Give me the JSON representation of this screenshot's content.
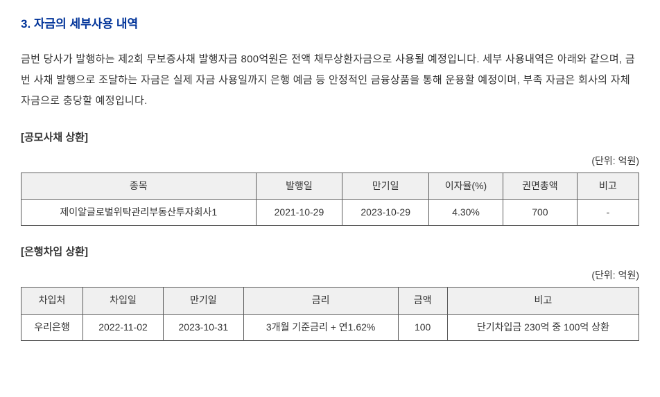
{
  "section": {
    "title": "3. 자금의 세부사용 내역",
    "body": "금번 당사가 발행하는 제2회 무보증사채 발행자금 800억원은 전액 채무상환자금으로 사용될 예정입니다. 세부 사용내역은 아래와 같으며, 금번 사채 발행으로 조달하는 자금은 실제 자금 사용일까지 은행 예금 등 안정적인 금융상품을 통해 운용할 예정이며, 부족 자금은 회사의 자체 자금으로 충당할 예정입니다."
  },
  "table1": {
    "subtitle": "[공모사채 상환]",
    "unit": "(단위: 억원)",
    "headers": [
      "종목",
      "발행일",
      "만기일",
      "이자율(%)",
      "권면총액",
      "비고"
    ],
    "row": [
      "제이알글로벌위탁관리부동산투자회사1",
      "2021-10-29",
      "2023-10-29",
      "4.30%",
      "700",
      "-"
    ]
  },
  "table2": {
    "subtitle": "[은행차입 상환]",
    "unit": "(단위: 억원)",
    "headers": [
      "차입처",
      "차입일",
      "만기일",
      "금리",
      "금액",
      "비고"
    ],
    "row": [
      "우리은행",
      "2022-11-02",
      "2023-10-31",
      "3개월 기준금리 + 연1.62%",
      "100",
      "단기차입금 230억 중 100억 상환"
    ]
  },
  "styling": {
    "title_color": "#003399",
    "text_color": "#333333",
    "border_color": "#5a5a5a",
    "header_bg": "#f0f0f0",
    "body_bg": "#ffffff",
    "title_fontsize": 17,
    "body_fontsize": 15,
    "table_fontsize": 14
  }
}
